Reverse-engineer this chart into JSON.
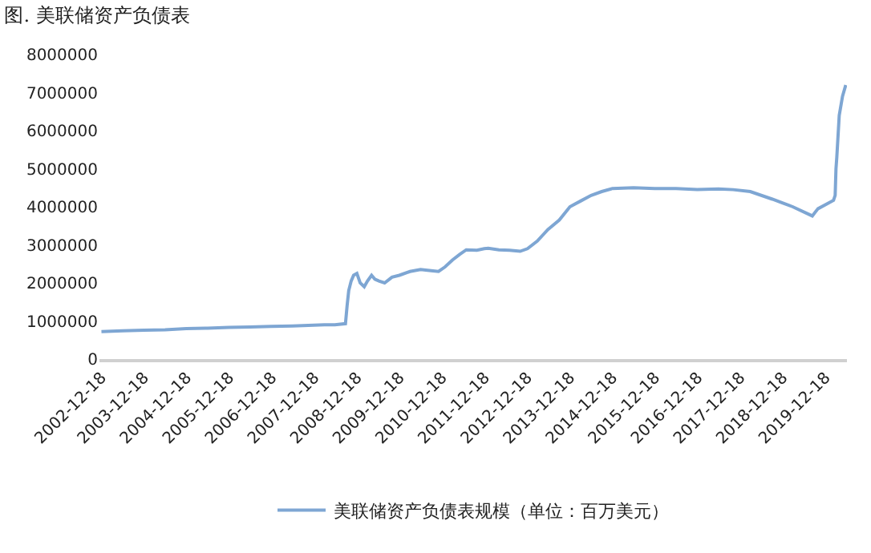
{
  "chart_data": {
    "type": "line",
    "title": "图. 美联储资产负债表",
    "x": [
      "2002-12-18",
      "2003-06-18",
      "2003-12-17",
      "2004-06-16",
      "2004-12-15",
      "2005-06-15",
      "2005-12-14",
      "2006-06-14",
      "2006-12-13",
      "2007-06-13",
      "2007-12-12",
      "2008-03-12",
      "2008-06-11",
      "2008-09-10",
      "2008-09-24",
      "2008-10-08",
      "2008-10-29",
      "2008-11-19",
      "2008-12-17",
      "2009-01-14",
      "2009-02-18",
      "2009-03-18",
      "2009-04-22",
      "2009-05-20",
      "2009-06-24",
      "2009-08-12",
      "2009-10-14",
      "2009-12-16",
      "2010-03-17",
      "2010-06-16",
      "2010-09-15",
      "2010-11-17",
      "2011-01-12",
      "2011-03-16",
      "2011-05-18",
      "2011-07-13",
      "2011-10-12",
      "2011-12-14",
      "2012-01-18",
      "2012-04-18",
      "2012-07-18",
      "2012-10-17",
      "2012-12-19",
      "2013-03-13",
      "2013-06-12",
      "2013-09-18",
      "2013-12-18",
      "2014-03-19",
      "2014-06-18",
      "2014-09-17",
      "2014-12-17",
      "2015-06-17",
      "2015-12-16",
      "2016-06-15",
      "2016-12-14",
      "2017-06-14",
      "2017-10-18",
      "2018-03-14",
      "2018-09-19",
      "2019-03-13",
      "2019-08-28",
      "2019-10-16",
      "2020-01-15",
      "2020-02-26",
      "2020-03-11",
      "2020-03-18",
      "2020-03-25",
      "2020-04-15",
      "2020-05-13",
      "2020-06-10"
    ],
    "series": [
      {
        "name": "美联储资产负债表规模（单位：百万美元）",
        "color": "#7ea6d3",
        "values": [
          720000,
          740000,
          760000,
          770000,
          800000,
          810000,
          830000,
          840000,
          860000,
          870000,
          890000,
          900000,
          900000,
          930000,
          1400000,
          1800000,
          2050000,
          2200000,
          2250000,
          2000000,
          1900000,
          2050000,
          2200000,
          2100000,
          2050000,
          2000000,
          2150000,
          2200000,
          2300000,
          2350000,
          2320000,
          2300000,
          2420000,
          2600000,
          2750000,
          2870000,
          2860000,
          2900000,
          2910000,
          2870000,
          2860000,
          2830000,
          2900000,
          3100000,
          3400000,
          3650000,
          4000000,
          4150000,
          4300000,
          4400000,
          4480000,
          4500000,
          4480000,
          4480000,
          4450000,
          4470000,
          4450000,
          4400000,
          4200000,
          4000000,
          3760000,
          3950000,
          4100000,
          4170000,
          4300000,
          5000000,
          5300000,
          6400000,
          6900000,
          7200000
        ]
      }
    ],
    "xlim": [
      "2002-12-01",
      "2020-06-20"
    ],
    "xticks": [
      "2002-12-18",
      "2003-12-18",
      "2004-12-18",
      "2005-12-18",
      "2006-12-18",
      "2007-12-18",
      "2008-12-18",
      "2009-12-18",
      "2010-12-18",
      "2011-12-18",
      "2012-12-18",
      "2013-12-18",
      "2014-12-18",
      "2015-12-18",
      "2016-12-18",
      "2017-12-18",
      "2018-12-18",
      "2019-12-18"
    ],
    "ylim": [
      0,
      8000000
    ],
    "yticks": [
      0,
      1000000,
      2000000,
      3000000,
      4000000,
      5000000,
      6000000,
      7000000,
      8000000
    ],
    "grid": false,
    "legend": "bottom",
    "marker": "none",
    "line_style": "solid"
  }
}
